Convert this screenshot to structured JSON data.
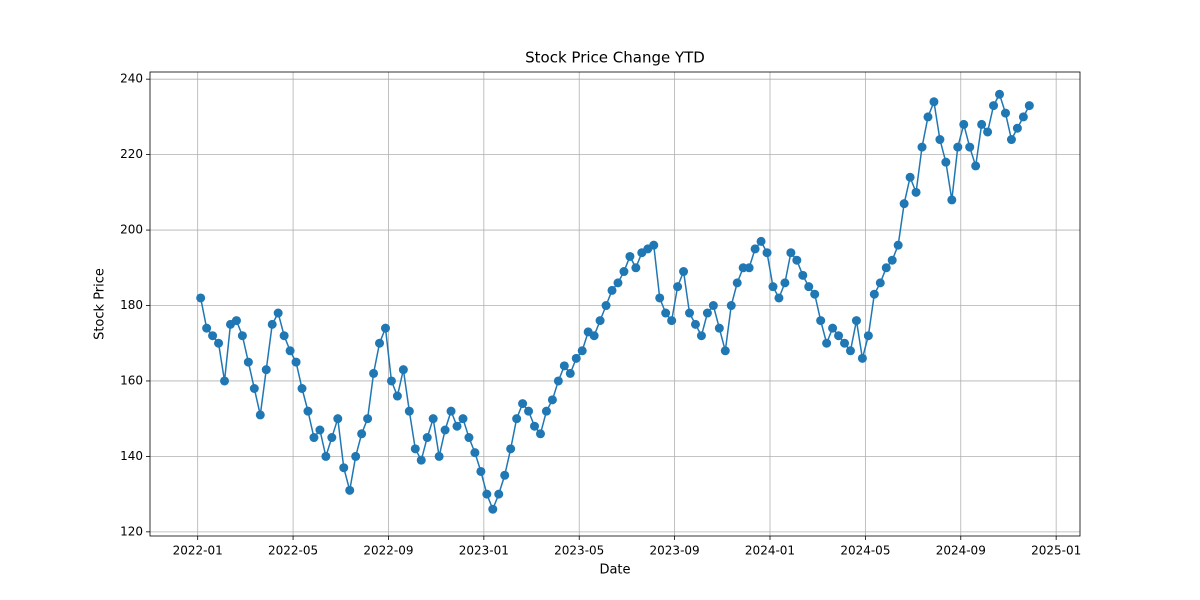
{
  "chart_data": {
    "type": "line",
    "title": "Stock Price Change YTD",
    "x_label": "Date",
    "y_label": "Stock Price",
    "x": [
      "2022-01",
      "2022-01",
      "2022-01",
      "2022-01",
      "2022-02",
      "2022-02",
      "2022-02",
      "2022-02",
      "2022-03",
      "2022-03",
      "2022-03",
      "2022-03",
      "2022-04",
      "2022-04",
      "2022-04",
      "2022-04",
      "2022-05",
      "2022-05",
      "2022-05",
      "2022-05",
      "2022-06",
      "2022-06",
      "2022-06",
      "2022-06",
      "2022-07",
      "2022-07",
      "2022-07",
      "2022-07",
      "2022-08",
      "2022-08",
      "2022-08",
      "2022-08",
      "2022-09",
      "2022-09",
      "2022-09",
      "2022-09",
      "2022-10",
      "2022-10",
      "2022-10",
      "2022-10",
      "2022-11",
      "2022-11",
      "2022-11",
      "2022-11",
      "2022-12",
      "2022-12",
      "2022-12",
      "2022-12",
      "2023-01",
      "2023-01",
      "2023-01",
      "2023-01",
      "2023-02",
      "2023-02",
      "2023-02",
      "2023-02",
      "2023-03",
      "2023-03",
      "2023-03",
      "2023-03",
      "2023-04",
      "2023-04",
      "2023-04",
      "2023-04",
      "2023-05",
      "2023-05",
      "2023-05",
      "2023-05",
      "2023-06",
      "2023-06",
      "2023-06",
      "2023-06",
      "2023-07",
      "2023-07",
      "2023-07",
      "2023-07",
      "2023-08",
      "2023-08",
      "2023-08",
      "2023-08",
      "2023-09",
      "2023-09",
      "2023-09",
      "2023-09",
      "2023-10",
      "2023-10",
      "2023-10",
      "2023-10",
      "2023-11",
      "2023-11",
      "2023-11",
      "2023-11",
      "2023-12",
      "2023-12",
      "2023-12",
      "2023-12",
      "2024-01",
      "2024-01",
      "2024-01",
      "2024-01",
      "2024-02",
      "2024-02",
      "2024-02",
      "2024-02",
      "2024-03",
      "2024-03",
      "2024-03",
      "2024-03",
      "2024-04",
      "2024-04",
      "2024-04",
      "2024-04",
      "2024-05",
      "2024-05",
      "2024-05",
      "2024-05",
      "2024-06",
      "2024-06",
      "2024-06",
      "2024-06",
      "2024-07",
      "2024-07",
      "2024-07",
      "2024-07",
      "2024-08",
      "2024-08",
      "2024-08",
      "2024-08",
      "2024-09",
      "2024-09",
      "2024-09",
      "2024-09",
      "2024-10",
      "2024-10",
      "2024-10",
      "2024-10",
      "2024-11",
      "2024-11",
      "2024-11",
      "2024-11"
    ],
    "series": [
      {
        "name": "Stock Price",
        "color": "#1f77b4",
        "values": [
          182,
          174,
          172,
          170,
          160,
          175,
          176,
          172,
          165,
          158,
          151,
          163,
          175,
          178,
          172,
          168,
          165,
          158,
          152,
          145,
          147,
          140,
          145,
          150,
          137,
          131,
          140,
          146,
          150,
          162,
          170,
          174,
          160,
          156,
          163,
          152,
          142,
          139,
          145,
          150,
          140,
          147,
          152,
          148,
          150,
          145,
          141,
          136,
          130,
          126,
          130,
          135,
          142,
          150,
          154,
          152,
          148,
          146,
          152,
          155,
          160,
          164,
          162,
          166,
          168,
          173,
          172,
          176,
          180,
          184,
          186,
          189,
          193,
          190,
          194,
          195,
          196,
          182,
          178,
          176,
          185,
          189,
          178,
          175,
          172,
          178,
          180,
          174,
          168,
          180,
          186,
          190,
          190,
          195,
          197,
          194,
          185,
          182,
          186,
          194,
          192,
          188,
          185,
          183,
          176,
          170,
          174,
          172,
          170,
          168,
          176,
          166,
          172,
          183,
          186,
          190,
          192,
          196,
          207,
          214,
          210,
          222,
          230,
          234,
          224,
          218,
          208,
          222,
          228,
          222,
          217,
          228,
          226,
          233,
          236,
          231,
          224,
          227,
          230,
          233
        ]
      }
    ],
    "xlim": [
      "2021-11",
      "2025-02"
    ],
    "xticks": [
      "2022-01",
      "2022-05",
      "2022-09",
      "2023-01",
      "2023-05",
      "2023-09",
      "2024-01",
      "2024-05",
      "2024-09",
      "2025-01"
    ],
    "ylim": [
      118.9,
      241.9
    ],
    "yticks": [
      120,
      140,
      160,
      180,
      200,
      220,
      240
    ],
    "grid": true,
    "marker": "o"
  }
}
